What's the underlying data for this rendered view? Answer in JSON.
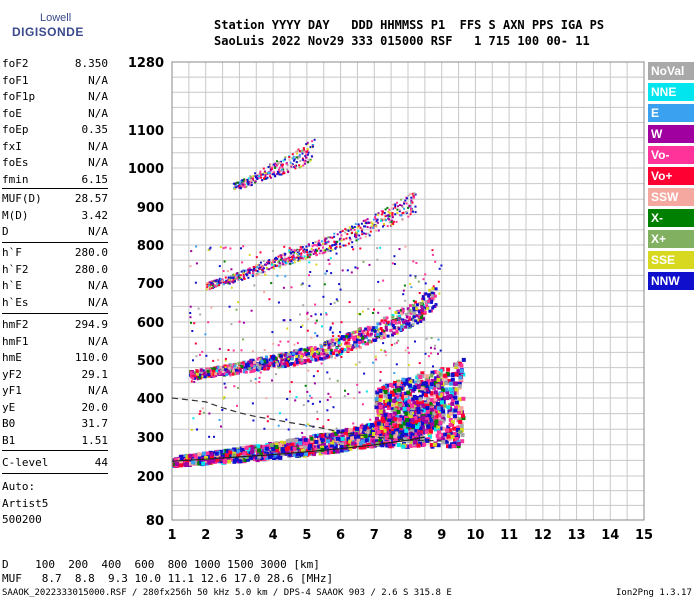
{
  "logo": {
    "line1": "Lowell",
    "line2": "DIGISONDE"
  },
  "header": {
    "line1": "Station YYYY DAY   DDD HHMMSS P1  FFS S AXN PPS IGA PS",
    "line2": "SaoLuis 2022 Nov29 333 015000 RSF   1 715 100 00- 11"
  },
  "params_group1": [
    {
      "name": "foF2",
      "value": "8.350"
    },
    {
      "name": "foF1",
      "value": "N/A"
    },
    {
      "name": "foF1p",
      "value": "N/A"
    },
    {
      "name": "foE",
      "value": "N/A"
    },
    {
      "name": "foEp",
      "value": "0.35"
    },
    {
      "name": "fxI",
      "value": "N/A"
    },
    {
      "name": "foEs",
      "value": "N/A"
    },
    {
      "name": "fmin",
      "value": "6.15"
    }
  ],
  "params_group2": [
    {
      "name": "MUF(D)",
      "value": "28.57"
    },
    {
      "name": "M(D)",
      "value": "3.42"
    },
    {
      "name": "D",
      "value": "N/A"
    }
  ],
  "params_group3": [
    {
      "name": "h`F",
      "value": "280.0"
    },
    {
      "name": "h`F2",
      "value": "280.0"
    },
    {
      "name": "h`E",
      "value": "N/A"
    },
    {
      "name": "h`Es",
      "value": "N/A"
    }
  ],
  "params_group4": [
    {
      "name": "hmF2",
      "value": "294.9"
    },
    {
      "name": "hmF1",
      "value": "N/A"
    },
    {
      "name": "hmE",
      "value": "110.0"
    },
    {
      "name": "yF2",
      "value": "29.1"
    },
    {
      "name": "yF1",
      "value": "N/A"
    },
    {
      "name": "yE",
      "value": "20.0"
    },
    {
      "name": "B0",
      "value": "31.7"
    },
    {
      "name": "B1",
      "value": "1.51"
    }
  ],
  "params_group5": [
    {
      "name": "C-level",
      "value": "44"
    }
  ],
  "auto": {
    "line1": "Auto:",
    "line2": "Artist5",
    "line3": "500200"
  },
  "legend": [
    {
      "label": "NoVal",
      "color": "#a9a9a9"
    },
    {
      "label": "NNE",
      "color": "#00e5ee"
    },
    {
      "label": "E",
      "color": "#3aa0f0"
    },
    {
      "label": "W",
      "color": "#a000a0"
    },
    {
      "label": "Vo-",
      "color": "#ff3399"
    },
    {
      "label": "Vo+",
      "color": "#ff0033"
    },
    {
      "label": "SSW",
      "color": "#f4a8a0"
    },
    {
      "label": "X-",
      "color": "#008000"
    },
    {
      "label": "X+",
      "color": "#80b060"
    },
    {
      "label": "SSE",
      "color": "#d8d820"
    },
    {
      "label": "NNW",
      "color": "#1010cc"
    }
  ],
  "bottom": {
    "d_row": "D    100  200  400  600  800 1000 1500 3000 [km]",
    "muf_row": "MUF   8.7  8.8  9.3 10.0 11.1 12.6 17.0 28.6 [MHz]",
    "footer_left": "SAAOK_2022333015000.RSF / 280fx256h 50 kHz 5.0 km / DPS-4 SAAOK 903 / 2.6 S 315.8 E",
    "footer_right": "Ion2Png 1.3.17"
  },
  "chart_data": {
    "type": "scatter",
    "x_ticks": [
      "1",
      "2",
      "3",
      "4",
      "5",
      "6",
      "7",
      "8",
      "9",
      "10",
      "11",
      "12",
      "13",
      "14",
      "15"
    ],
    "y_ticks": [
      "80",
      "200",
      "300",
      "400",
      "500",
      "600",
      "700",
      "800",
      "900",
      "1000",
      "1100",
      "1280"
    ],
    "xlim": [
      1,
      15
    ],
    "ylim": [
      80,
      1280
    ],
    "grid": true,
    "legend_position": "right",
    "traces": [
      {
        "name": "F2 trace",
        "points": [
          [
            1.0,
            237
          ],
          [
            2.0,
            245
          ],
          [
            3.0,
            252
          ],
          [
            4.0,
            262
          ],
          [
            5.0,
            272
          ],
          [
            6.0,
            285
          ],
          [
            7.0,
            300
          ],
          [
            8.0,
            320
          ],
          [
            8.5,
            340
          ],
          [
            9.0,
            360
          ]
        ]
      },
      {
        "name": "2F2 trace",
        "points": [
          [
            1.5,
            460
          ],
          [
            2.5,
            470
          ],
          [
            3.5,
            485
          ],
          [
            4.5,
            500
          ],
          [
            5.5,
            520
          ],
          [
            6.5,
            550
          ],
          [
            7.5,
            585
          ],
          [
            8.3,
            620
          ],
          [
            8.8,
            660
          ]
        ]
      },
      {
        "name": "3F2 trace",
        "points": [
          [
            2.0,
            690
          ],
          [
            2.8,
            710
          ],
          [
            3.6,
            735
          ],
          [
            4.4,
            760
          ],
          [
            5.2,
            785
          ],
          [
            6.0,
            810
          ],
          [
            6.8,
            840
          ],
          [
            7.5,
            870
          ],
          [
            8.2,
            905
          ]
        ]
      },
      {
        "name": "4F2 trace",
        "points": [
          [
            2.8,
            950
          ],
          [
            3.3,
            965
          ],
          [
            3.8,
            985
          ],
          [
            4.3,
            1000
          ],
          [
            4.8,
            1020
          ],
          [
            5.2,
            1045
          ]
        ]
      }
    ],
    "profile_curve": [
      [
        1.0,
        400
      ],
      [
        1.5,
        395
      ],
      [
        2.0,
        390
      ],
      [
        2.5,
        375
      ],
      [
        3.0,
        362
      ],
      [
        3.5,
        352
      ],
      [
        4.0,
        345
      ],
      [
        4.5,
        337
      ],
      [
        5.0,
        330
      ],
      [
        5.5,
        322
      ],
      [
        6.0,
        312
      ],
      [
        7.0,
        300
      ],
      [
        8.0,
        292
      ],
      [
        9.0,
        290
      ]
    ],
    "fitted_line": [
      [
        1.0,
        238
      ],
      [
        2.0,
        243
      ],
      [
        3.0,
        249
      ],
      [
        4.0,
        255
      ],
      [
        5.0,
        262
      ],
      [
        6.0,
        270
      ],
      [
        7.0,
        280
      ],
      [
        8.0,
        292
      ],
      [
        8.5,
        300
      ]
    ]
  }
}
